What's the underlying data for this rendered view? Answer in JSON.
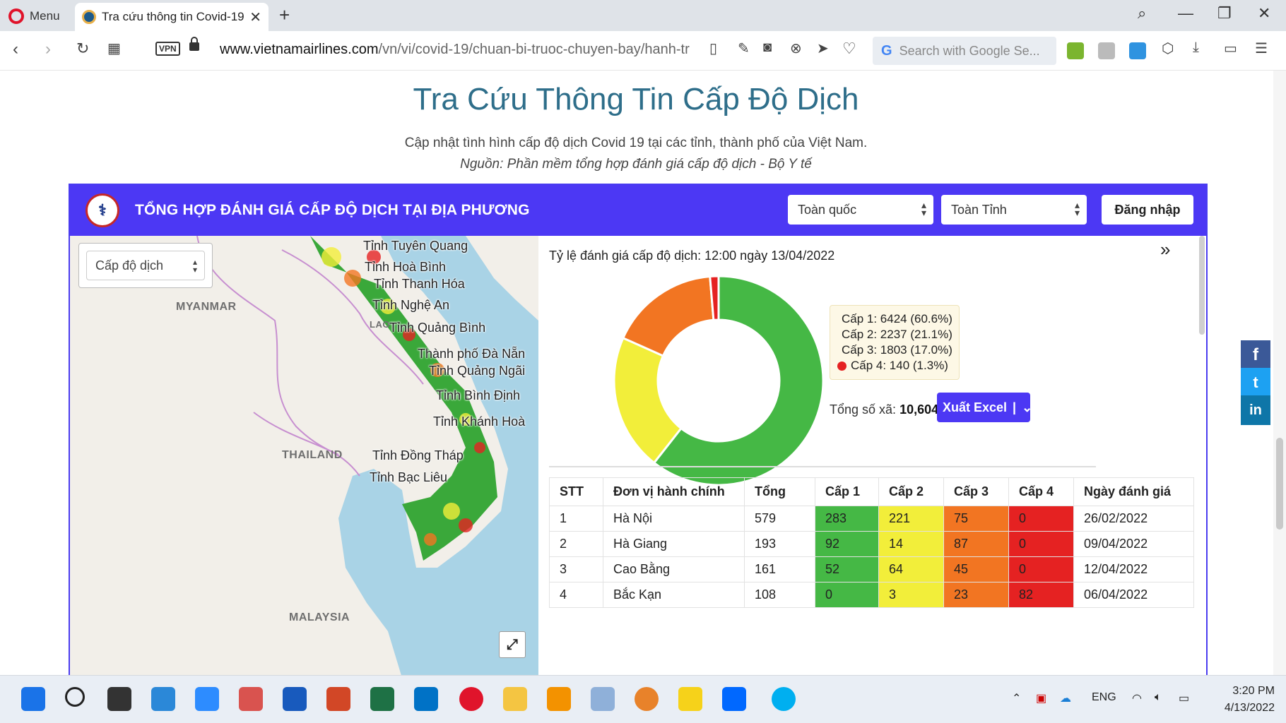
{
  "browser": {
    "menu_label": "Menu",
    "tab_title": "Tra cứu thông tin Covid-19",
    "url_domain": "www.vietnamairlines.com",
    "url_path": "/vn/vi/covid-19/chuan-bi-truoc-chuyen-bay/hanh-tr",
    "vpn_label": "VPN",
    "search_placeholder": "Search with Google Se..."
  },
  "page": {
    "title": "Tra Cứu Thông Tin Cấp Độ Dịch",
    "subtitle": "Cập nhật tình hình cấp độ dịch Covid 19 tại các tỉnh, thành phố của Việt Nam.",
    "source": "Nguồn: Phần mềm tổng hợp đánh giá cấp độ dịch - Bộ Y tế"
  },
  "panel": {
    "header_title": "TỔNG HỢP ĐÁNH GIÁ CẤP ĐỘ DỊCH TẠI ĐỊA PHƯƠNG",
    "select_scope": "Toàn quốc",
    "select_province": "Toàn Tỉnh",
    "login_label": "Đăng nhập",
    "map_layer_select": "Cấp độ dịch",
    "map_countries": [
      "MYANMAR",
      "THAILAND",
      "MALAYSIA",
      "LAO"
    ],
    "map_provinces": [
      "Tỉnh Tuyên Quang",
      "Tỉnh Hoà Bình",
      "Tỉnh Thanh Hóa",
      "Tỉnh Nghệ An",
      "Tỉnh Quảng Bình",
      "Thành phố Đà Nẵn",
      "Tỉnh Quảng Ngãi",
      "Tỉnh Bình Định",
      "Tỉnh Khánh Hoà",
      "Tỉnh Đồng Tháp",
      "Tỉnh Bạc Liêu"
    ],
    "rate_label": "Tỷ lệ đánh giá cấp độ dịch: 12:00 ngày 13/04/2022",
    "total_label": "Tổng số xã:",
    "total_value": "10,604",
    "export_label": "Xuất Excel",
    "colors": {
      "cap1": "#45b845",
      "cap2": "#f2ee3a",
      "cap3": "#f27522",
      "cap4": "#e52222",
      "brand": "#4c38f4"
    }
  },
  "chart_data": {
    "type": "pie",
    "donut": true,
    "title": "",
    "legend_position": "right",
    "slices": [
      {
        "label": "Cấp 1: 6424 (60.6%)",
        "name": "Cấp 1",
        "value": 6424,
        "percent": 60.6,
        "color": "#45b845"
      },
      {
        "label": "Cấp 2: 2237 (21.1%)",
        "name": "Cấp 2",
        "value": 2237,
        "percent": 21.1,
        "color": "#f2ee3a"
      },
      {
        "label": "Cấp 3: 1803 (17.0%)",
        "name": "Cấp 3",
        "value": 1803,
        "percent": 17.0,
        "color": "#f27522"
      },
      {
        "label": "Cấp 4: 140 (1.3%)",
        "name": "Cấp 4",
        "value": 140,
        "percent": 1.3,
        "color": "#e52222"
      }
    ]
  },
  "table": {
    "headers": [
      "STT",
      "Đơn vị hành chính",
      "Tổng",
      "Cấp 1",
      "Cấp 2",
      "Cấp 3",
      "Cấp 4",
      "Ngày đánh giá"
    ],
    "rows": [
      [
        "1",
        "Hà Nội",
        "579",
        "283",
        "221",
        "75",
        "0",
        "26/02/2022"
      ],
      [
        "2",
        "Hà Giang",
        "193",
        "92",
        "14",
        "87",
        "0",
        "09/04/2022"
      ],
      [
        "3",
        "Cao Bằng",
        "161",
        "52",
        "64",
        "45",
        "0",
        "12/04/2022"
      ],
      [
        "4",
        "Bắc Kạn",
        "108",
        "0",
        "3",
        "23",
        "82",
        "06/04/2022"
      ]
    ]
  },
  "social": {
    "facebook": "f",
    "twitter": "t",
    "linkedin": "in"
  },
  "taskbar": {
    "lang": "ENG",
    "time": "3:20 PM",
    "date": "4/13/2022"
  }
}
